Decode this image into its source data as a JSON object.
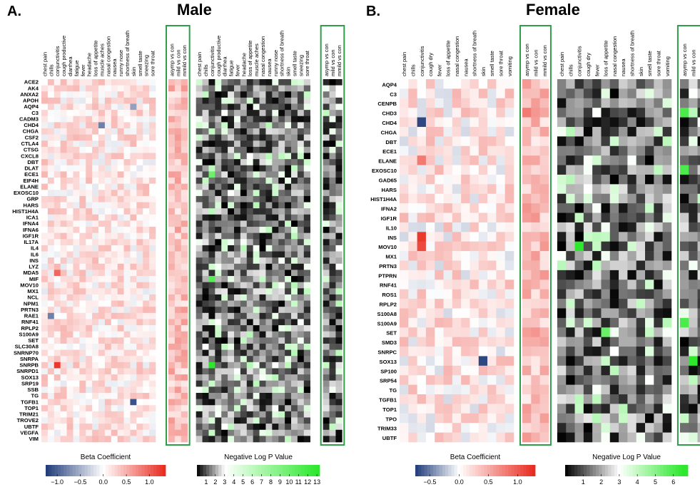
{
  "panels": [
    {
      "letter": "A.",
      "title": "Male",
      "genes": [
        "ACE2",
        "AK4",
        "ANXA2",
        "APOH",
        "AQP4",
        "C3",
        "CADM3",
        "CHD4",
        "CHGA",
        "CSF2",
        "CTLA4",
        "CTSG",
        "CXCL8",
        "DBT",
        "DLAT",
        "ECE1",
        "EIF4H",
        "ELANE",
        "EXOSC10",
        "GRP",
        "HARS",
        "HIST1H4A",
        "ICA1",
        "IFNA4",
        "IFNA6",
        "IGF1R",
        "IL17A",
        "IL4",
        "IL6",
        "INS",
        "LYZ",
        "MDA5",
        "MIF",
        "MOV10",
        "MX1",
        "NCL",
        "NPM1",
        "PRTN3",
        "RAE1",
        "RNF41",
        "RPLP2",
        "S100A9",
        "SET",
        "SLC30A8",
        "SNRNP70",
        "SNRPA",
        "SNRPB",
        "SNRPD1",
        "SOX13",
        "SRP19",
        "SSB",
        "TG",
        "TGFB1",
        "TOP1",
        "TRIM21",
        "TROVE2",
        "UBTF",
        "VEGFA",
        "VIM"
      ],
      "columns": [
        "chest pain",
        "chills",
        "conjunctivitis",
        "cough productive",
        "diarrhea",
        "fatigue",
        "fever",
        "headache",
        "loss of appetite",
        "muscle aches",
        "nasal congestion",
        "nausea",
        "runny nose",
        "shortness of breath",
        "skin",
        "smell taste",
        "sneezing",
        "sore throat",
        "asymp vs con",
        "mild vs con",
        "mmild vs con"
      ],
      "legend_beta": {
        "title": "Beta Coefficient",
        "ticks": [
          "−1.0",
          "−0.5",
          "0.0",
          "0.5",
          "1.0"
        ],
        "min": -1.25,
        "max": 1.35
      },
      "legend_p": {
        "title": "Negative Log P Value",
        "ticks": [
          "1",
          "2",
          "3",
          "4",
          "5",
          "6",
          "7",
          "8",
          "9",
          "10",
          "11",
          "12",
          "13"
        ]
      }
    },
    {
      "letter": "B.",
      "title": "Female",
      "genes": [
        "AQP4",
        "C3",
        "CENPB",
        "CHD3",
        "CHD4",
        "CHGA",
        "DBT",
        "ECE1",
        "ELANE",
        "EXOSC10",
        "GAD65",
        "HARS",
        "HIST1H4A",
        "IFNA2",
        "IGF1R",
        "IL10",
        "INS",
        "MOV10",
        "MX1",
        "PRTN3",
        "PTPRN",
        "RNF41",
        "ROS1",
        "RPLP2",
        "S100A8",
        "S100A9",
        "SET",
        "SMD3",
        "SNRPC",
        "SOX13",
        "SP100",
        "SRP54",
        "TG",
        "TGFB1",
        "TOP1",
        "TPO",
        "TRIM33",
        "UBTF"
      ],
      "columns": [
        "chest pain",
        "chills",
        "conjunctivitis",
        "cough dry",
        "fever",
        "loss of appetite",
        "nasal congestion",
        "nausea",
        "shortness of breath",
        "skin",
        "smell taste",
        "sore throat",
        "vomiting",
        "asymp vs con",
        "mild vs con",
        "mmild vs con"
      ],
      "legend_beta": {
        "title": "Beta Coefficient",
        "ticks": [
          "−0.5",
          "0.0",
          "0.5",
          "1.0"
        ],
        "min": -0.75,
        "max": 1.3
      },
      "legend_p": {
        "title": "Negative Log P Value",
        "ticks": [
          "1",
          "2",
          "3",
          "4",
          "5",
          "6"
        ]
      }
    }
  ],
  "colors": {
    "negative": "#1f3a78",
    "zero": "#ffffff",
    "positive": "#e8281c",
    "p_low": "#000000",
    "p_mid": "#ffffff",
    "p_high": "#2ee82e",
    "highlight_box": "#2e9e4a"
  },
  "chart_data": [
    {
      "type": "heatmap",
      "title": "Male",
      "panel": "A.",
      "metric": "Beta Coefficient",
      "rows": "panels.0.genes",
      "columns": "panels.0.columns",
      "value_range": [
        -1.25,
        1.35
      ],
      "highlighted_columns": [
        "asymp vs con",
        "mild vs con",
        "mmild vs con"
      ],
      "notable_cells": [
        {
          "gene": "MDA5",
          "column": "conjunctivitis",
          "value": 0.95
        },
        {
          "gene": "SNRPB",
          "column": "conjunctivitis",
          "value": 1.25
        },
        {
          "gene": "TGFB1",
          "column": "skin",
          "value": -1.1
        },
        {
          "gene": "CHD4",
          "column": "muscle aches",
          "value": -0.8
        },
        {
          "gene": "RAE1",
          "column": "chills",
          "value": -0.8
        },
        {
          "gene": "AQP4",
          "column": "skin",
          "value": -0.6
        }
      ]
    },
    {
      "type": "heatmap",
      "title": "Male",
      "panel": "A.",
      "metric": "Negative Log P Value",
      "rows": "panels.0.genes",
      "columns": "panels.0.columns",
      "value_range": [
        0,
        13
      ],
      "highlighted_columns": [
        "asymp vs con",
        "mild vs con",
        "mmild vs con"
      ],
      "notable_cells": [
        {
          "gene": "SNRPB",
          "column": "conjunctivitis",
          "value": 13
        },
        {
          "gene": "MIF",
          "column": "conjunctivitis",
          "value": 11
        },
        {
          "gene": "ECE1",
          "column": "conjunctivitis",
          "value": 10
        }
      ]
    },
    {
      "type": "heatmap",
      "title": "Female",
      "panel": "B.",
      "metric": "Beta Coefficient",
      "rows": "panels.1.genes",
      "columns": "panels.1.columns",
      "value_range": [
        -0.75,
        1.3
      ],
      "highlighted_columns": [
        "asymp vs con",
        "mild vs con",
        "mmild vs con"
      ],
      "notable_cells": [
        {
          "gene": "INS",
          "column": "conjunctivitis",
          "value": 1.2
        },
        {
          "gene": "MOV10",
          "column": "conjunctivitis",
          "value": 1.1
        },
        {
          "gene": "ELANE",
          "column": "conjunctivitis",
          "value": 0.8
        },
        {
          "gene": "CHD4",
          "column": "conjunctivitis",
          "value": -0.7
        },
        {
          "gene": "SOX13",
          "column": "skin",
          "value": -0.7
        },
        {
          "gene": "CHD3",
          "column": "asymp vs con",
          "value": 0.8
        }
      ]
    },
    {
      "type": "heatmap",
      "title": "Female",
      "panel": "B.",
      "metric": "Negative Log P Value",
      "rows": "panels.1.genes",
      "columns": "panels.1.columns",
      "value_range": [
        0,
        6.5
      ],
      "highlighted_columns": [
        "asymp vs con",
        "mild vs con",
        "mmild vs con"
      ],
      "notable_cells": [
        {
          "gene": "MOV10",
          "column": "conjunctivitis",
          "value": 6.5
        },
        {
          "gene": "SOX13",
          "column": "mild vs con",
          "value": 6.5
        },
        {
          "gene": "CHD3",
          "column": "asymp vs con",
          "value": 6
        },
        {
          "gene": "EXOSC10",
          "column": "asymp vs con",
          "value": 6
        },
        {
          "gene": "S100A9",
          "column": "asymp vs con",
          "value": 6
        },
        {
          "gene": "SET",
          "column": "loss of appetite",
          "value": 5.5
        }
      ]
    }
  ]
}
